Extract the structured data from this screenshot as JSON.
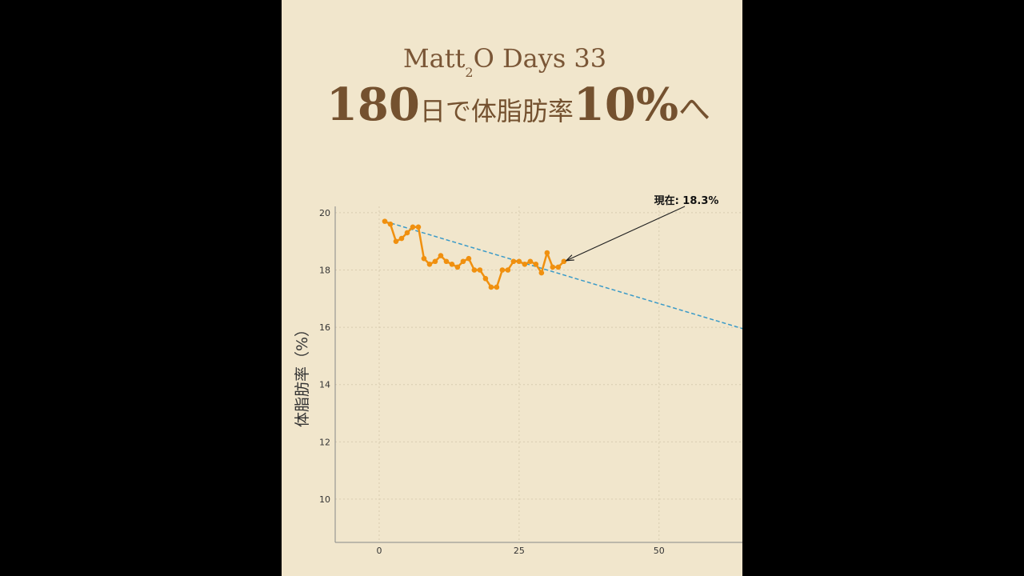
{
  "header": {
    "title_parts": [
      "Matt",
      "2",
      "O Days 33"
    ],
    "subtitle_parts": [
      "180",
      "日で体脂肪率",
      "10%",
      "へ"
    ]
  },
  "chart_data": {
    "type": "line",
    "y_label": "体脂肪率（%）",
    "x": [
      1,
      2,
      3,
      4,
      5,
      6,
      7,
      8,
      9,
      10,
      11,
      12,
      13,
      14,
      15,
      16,
      17,
      18,
      19,
      20,
      21,
      22,
      23,
      24,
      25,
      26,
      27,
      28,
      29,
      30,
      31,
      32,
      33
    ],
    "series": [
      {
        "color": "#f0900f",
        "values": [
          19.7,
          19.6,
          19.0,
          19.1,
          19.3,
          19.5,
          19.5,
          18.4,
          18.2,
          18.3,
          18.5,
          18.3,
          18.2,
          18.1,
          18.3,
          18.4,
          18.0,
          18.0,
          17.7,
          17.4,
          17.4,
          18.0,
          18.0,
          18.3,
          18.3,
          18.2,
          18.3,
          18.2,
          17.9,
          18.6,
          18.1,
          18.1,
          18.3
        ]
      }
    ],
    "trend": {
      "color": "#3a9ac8",
      "x": [
        1,
        65
      ],
      "values": [
        19.7,
        15.95
      ]
    },
    "annotation": {
      "text": "現在: 18.3%"
    },
    "xlim": [
      -7.86,
      64.9
    ],
    "ylim": [
      8.49,
      20.22
    ],
    "xticks": [
      0,
      25,
      50
    ],
    "yticks": [
      10,
      12,
      14,
      16,
      18,
      20
    ],
    "grid": true
  }
}
